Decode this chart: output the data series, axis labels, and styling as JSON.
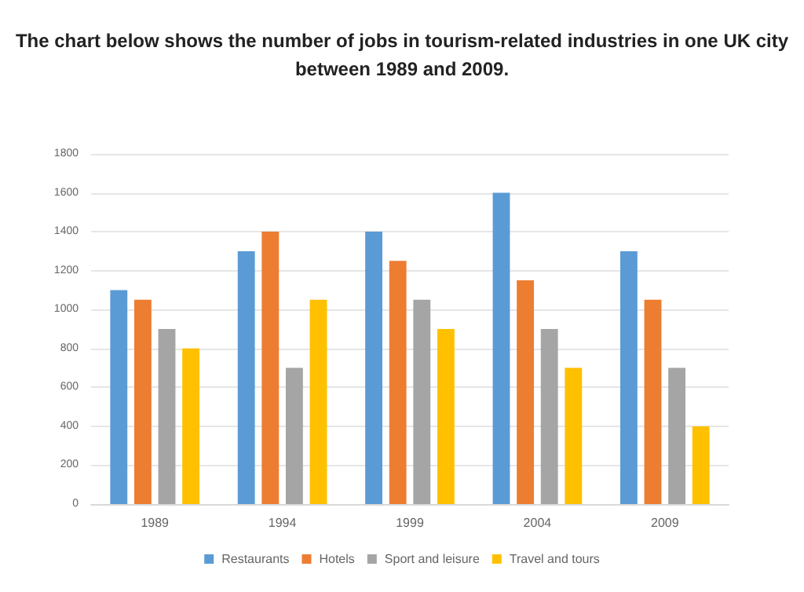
{
  "chart_data": {
    "type": "bar",
    "title": "The chart below shows the number of jobs in tourism-related industries in one UK city\nbetween 1989 and 2009.",
    "categories": [
      "1989",
      "1994",
      "1999",
      "2004",
      "2009"
    ],
    "series": [
      {
        "name": "Restaurants",
        "color": "#5b9bd5",
        "values": [
          1100,
          1300,
          1400,
          1600,
          1300
        ]
      },
      {
        "name": "Hotels",
        "color": "#ed7d31",
        "values": [
          1050,
          1400,
          1250,
          1150,
          1050
        ]
      },
      {
        "name": "Sport and leisure",
        "color": "#a5a5a5",
        "values": [
          900,
          700,
          1050,
          900,
          700
        ]
      },
      {
        "name": "Travel and tours",
        "color": "#ffc000",
        "values": [
          800,
          1050,
          900,
          700,
          400
        ]
      }
    ],
    "ylim": [
      0,
      1800
    ],
    "yticks": [
      0,
      200,
      400,
      600,
      800,
      1000,
      1200,
      1400,
      1600,
      1800
    ],
    "grid": "y",
    "legend": "bottom"
  }
}
